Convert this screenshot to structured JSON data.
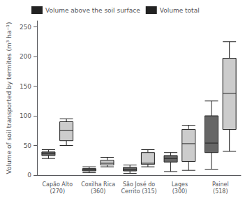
{
  "chart_data": {
    "type": "boxplot",
    "ylabel": "Volume of soil transported by termites (m³ ha⁻¹)",
    "categories": [
      "Capão Alto\n(270)",
      "Coxilha Rica\n(360)",
      "São José do\nCerrito (315)",
      "Lages\n(300)",
      "Painel\n(518)"
    ],
    "series": [
      {
        "name": "Volume above the soil surface",
        "color": "#666666",
        "values": [
          {
            "whislo": 28,
            "q1": 33,
            "med": 36,
            "q3": 39,
            "whishi": 43
          },
          {
            "whislo": 4,
            "q1": 7,
            "med": 9,
            "q3": 11,
            "whishi": 14
          },
          {
            "whislo": 3,
            "q1": 7,
            "med": 10,
            "q3": 13,
            "whishi": 17
          },
          {
            "whislo": 6,
            "q1": 22,
            "med": 28,
            "q3": 33,
            "whishi": 38
          },
          {
            "whislo": 10,
            "q1": 38,
            "med": 54,
            "q3": 100,
            "whishi": 125
          }
        ]
      },
      {
        "name": "Volume total",
        "color": "#cccccc",
        "values": [
          {
            "whislo": 50,
            "q1": 58,
            "med": 75,
            "q3": 90,
            "whishi": 95
          },
          {
            "whislo": 14,
            "q1": 17,
            "med": 20,
            "q3": 25,
            "whishi": 30
          },
          {
            "whislo": 14,
            "q1": 18,
            "med": 20,
            "q3": 38,
            "whishi": 43
          },
          {
            "whislo": 8,
            "q1": 23,
            "med": 53,
            "q3": 77,
            "whishi": 84
          },
          {
            "whislo": 40,
            "q1": 77,
            "med": 138,
            "q3": 197,
            "whishi": 225
          }
        ]
      }
    ],
    "ylim": [
      0,
      260
    ],
    "yticks": [
      0,
      50,
      100,
      150,
      200,
      250
    ],
    "legend": "upper left",
    "grid": false
  }
}
